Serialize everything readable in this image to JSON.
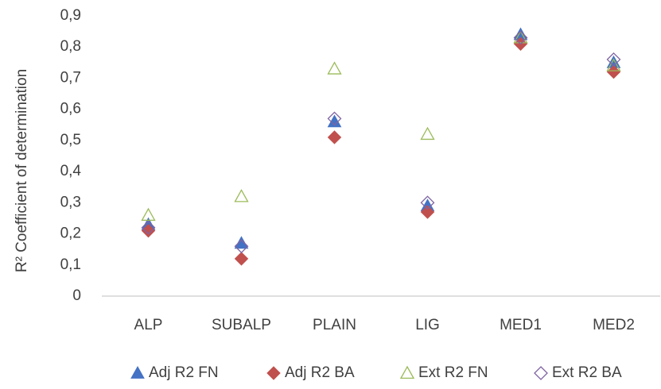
{
  "chart_data": {
    "type": "scatter",
    "y_label": "R² Coefficient of determination",
    "categories": [
      "ALP",
      "SUBALP",
      "PLAIN",
      "LIG",
      "MED1",
      "MED2"
    ],
    "ylim": [
      0,
      0.9
    ],
    "yticks": [
      0,
      {
        "value": 0.1,
        "label": "0,1"
      },
      {
        "value": 0.2,
        "label": "0,2"
      },
      {
        "value": 0.3,
        "label": "0,3"
      },
      {
        "value": 0.4,
        "label": "0,4"
      },
      {
        "value": 0.5,
        "label": "0,5"
      },
      {
        "value": 0.6,
        "label": "0,6"
      },
      {
        "value": 0.7,
        "label": "0,7"
      },
      {
        "value": 0.8,
        "label": "0,8"
      },
      {
        "value": 0.9,
        "label": "0,9"
      }
    ],
    "grid": false,
    "legend": "bottom",
    "series": [
      {
        "name": "Adj R2 FN",
        "color": "#4472c4",
        "marker": "triangle",
        "filled": true,
        "values": [
          0.23,
          0.17,
          0.56,
          0.29,
          0.84,
          0.75
        ]
      },
      {
        "name": "Adj R2 BA",
        "color": "#c0504d",
        "marker": "diamond",
        "filled": true,
        "values": [
          0.21,
          0.12,
          0.51,
          0.27,
          0.81,
          0.72
        ]
      },
      {
        "name": "Ext R2 FN",
        "color": "#9bbb59",
        "marker": "triangle",
        "filled": false,
        "values": [
          0.26,
          0.32,
          0.73,
          0.52,
          0.83,
          0.74
        ]
      },
      {
        "name": "Ext R2 BA",
        "color": "#8064a2",
        "marker": "diamond",
        "filled": false,
        "values": [
          0.22,
          0.16,
          0.57,
          0.3,
          0.83,
          0.76
        ]
      }
    ]
  }
}
